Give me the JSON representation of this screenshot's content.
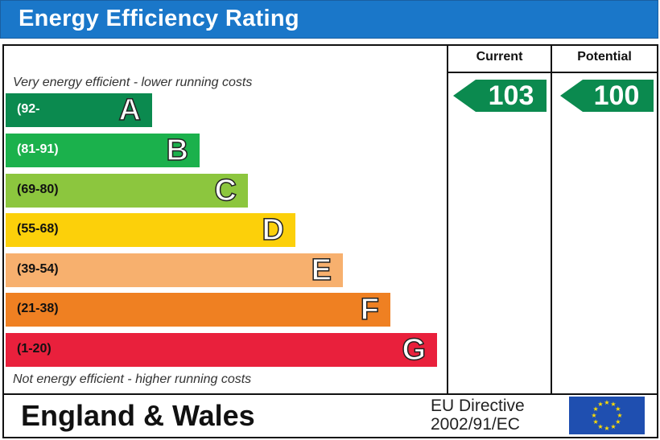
{
  "header": {
    "title": "Energy Efficiency Rating"
  },
  "columns": {
    "current": "Current",
    "potential": "Potential"
  },
  "notes": {
    "top": "Very energy efficient - lower running costs",
    "bottom": "Not energy efficient - higher running costs"
  },
  "chart_data": {
    "type": "bar",
    "title": "Energy Efficiency Rating",
    "categories": [
      "A",
      "B",
      "C",
      "D",
      "E",
      "F",
      "G"
    ],
    "ranges": [
      "(92-",
      "(81-91)",
      "(69-80)",
      "(55-68)",
      "(39-54)",
      "(21-38)",
      "(1-20)"
    ],
    "colors": [
      "#0b8a4f",
      "#1bb14c",
      "#8cc63e",
      "#fcd00a",
      "#f7b06e",
      "#ef8022",
      "#e9203c"
    ],
    "current": 103,
    "potential": 100,
    "arrow_color": "#0b8a4f"
  },
  "footer": {
    "country": "England & Wales",
    "directive_line1": "EU Directive",
    "directive_line2": "2002/91/EC"
  }
}
